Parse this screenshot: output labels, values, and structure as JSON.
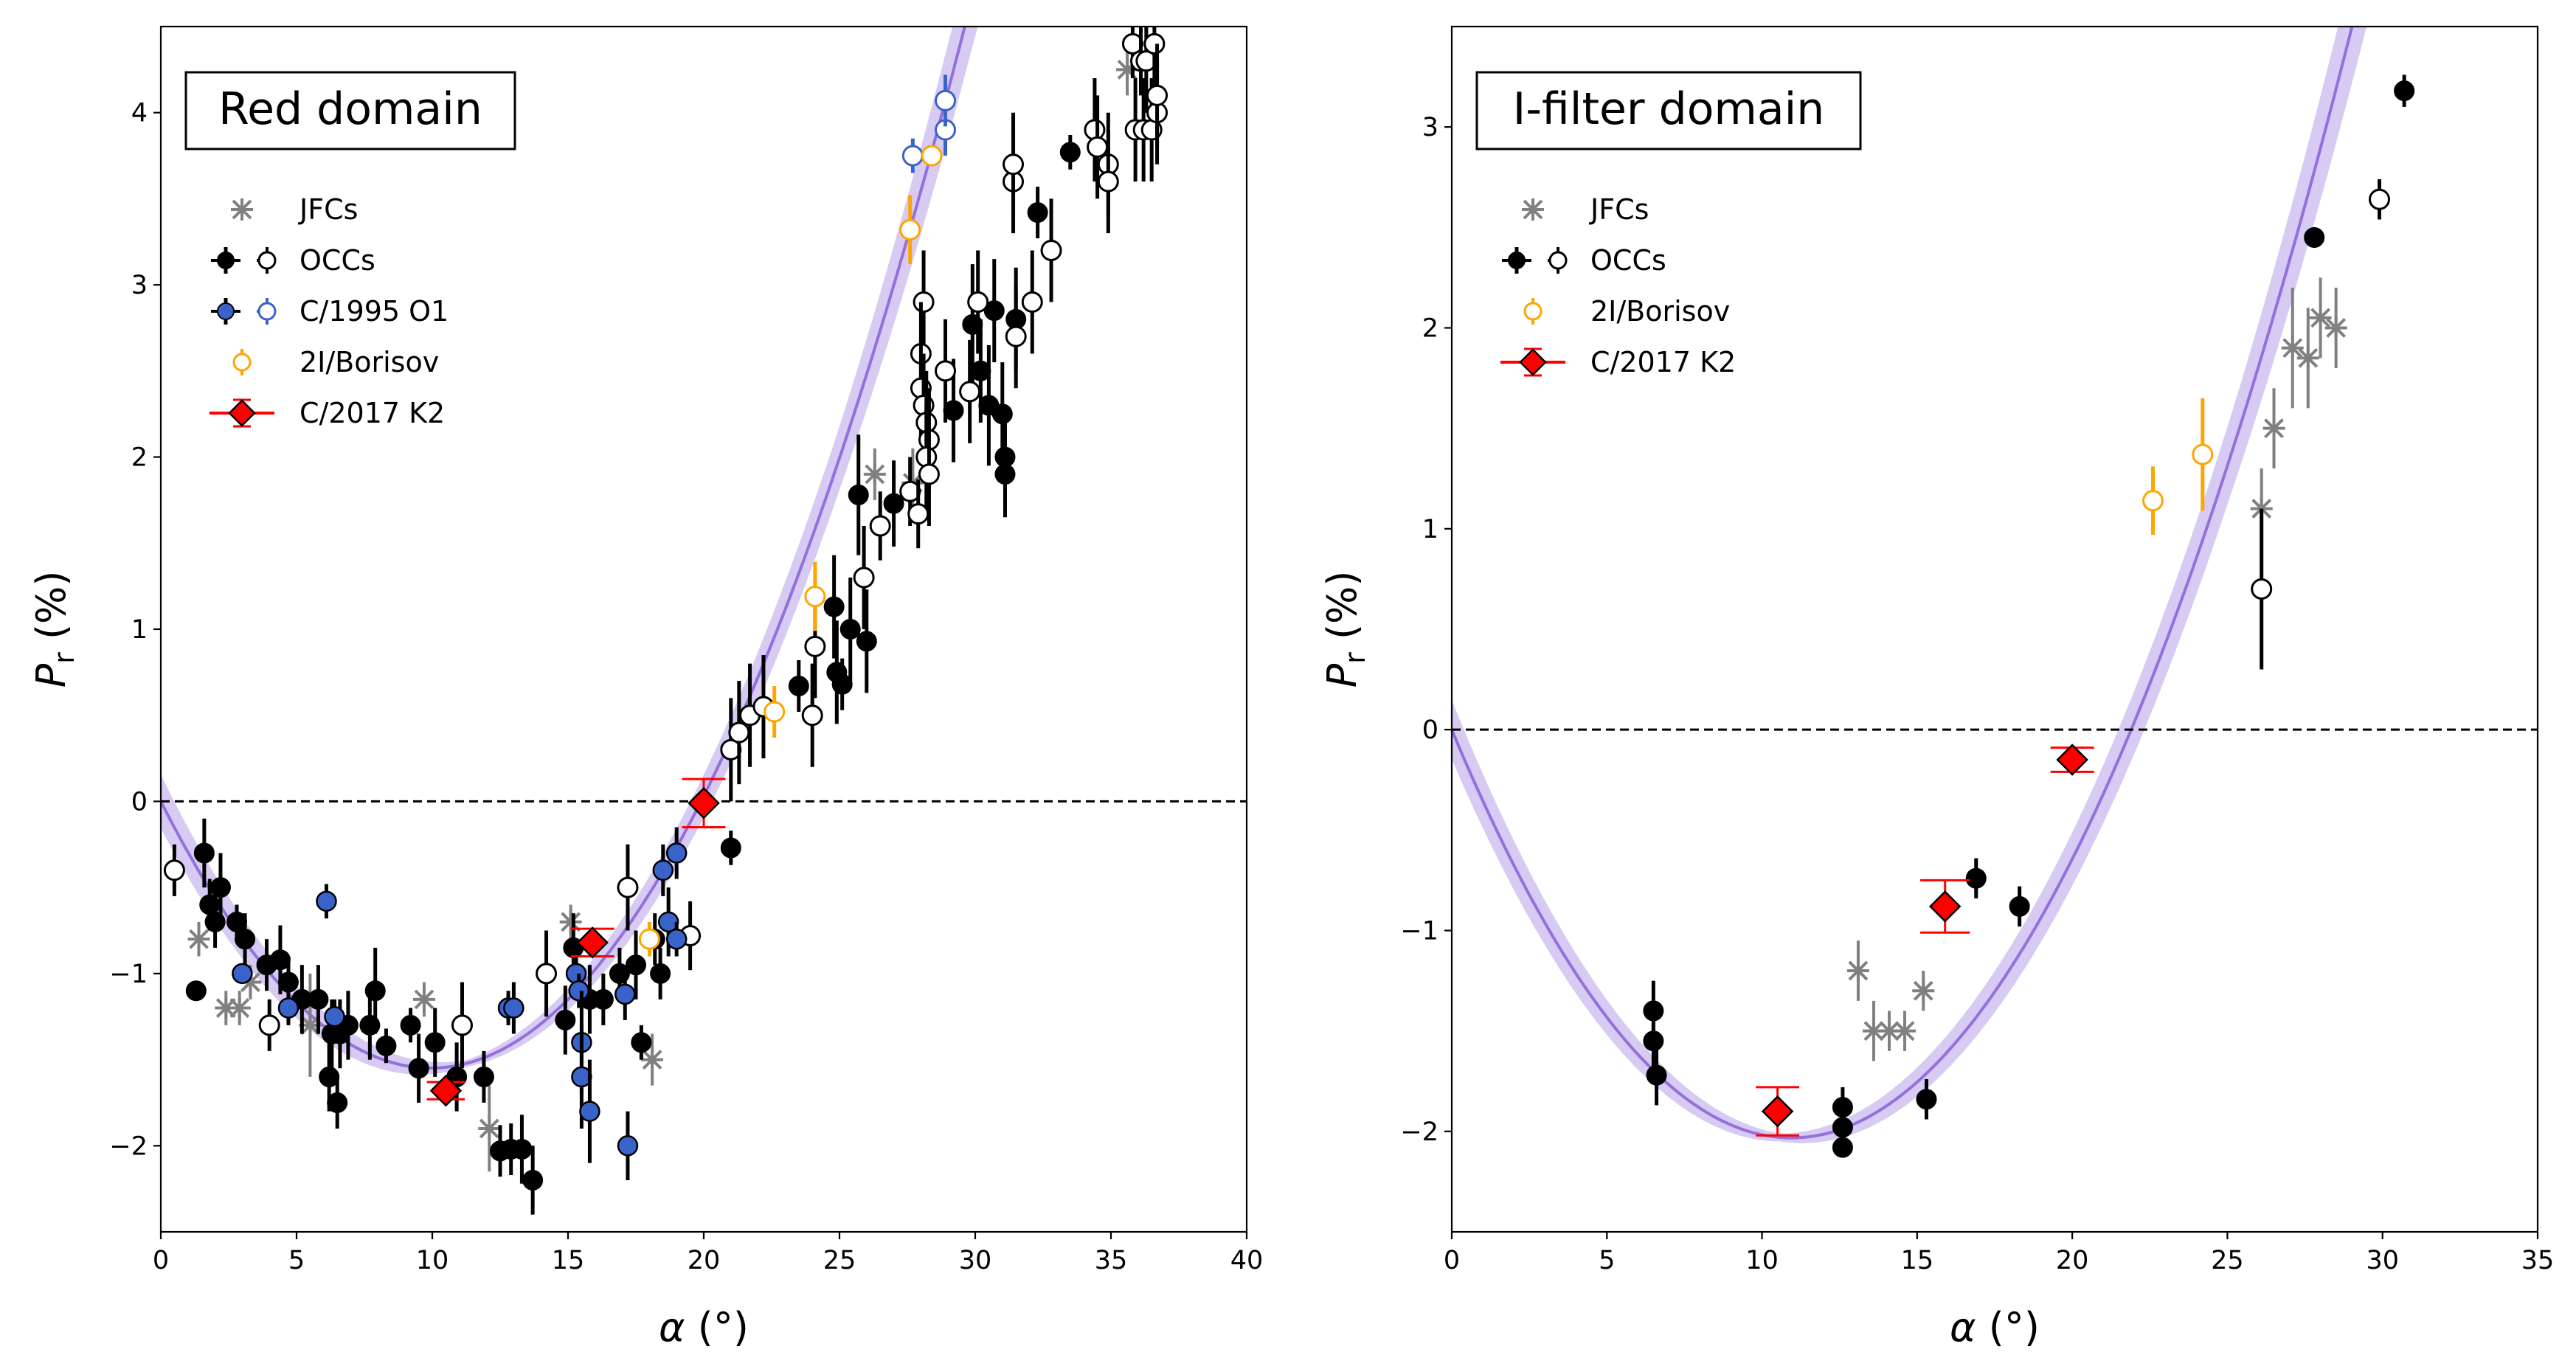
{
  "colors": {
    "jfc": "#808080",
    "occ": "#000000",
    "c1995": "#3a63c9",
    "borisov": "#ffa500",
    "k2": "#ff0000",
    "fit": "#9370db",
    "fit_band": "#c9b8ef"
  },
  "chart_data": [
    {
      "type": "scatter",
      "title": "Red domain",
      "xlabel": "α (°)",
      "ylabel": "P_r (%)",
      "xlim": [
        0,
        40
      ],
      "ylim": [
        -2.5,
        4.5
      ],
      "xticks": [
        0,
        5,
        10,
        15,
        20,
        25,
        30,
        35,
        40
      ],
      "yticks": [
        -2,
        -1,
        0,
        1,
        2,
        3,
        4
      ],
      "legend": [
        "JFCs",
        "OCCs",
        "C/1995 O1",
        "2I/Borisov",
        "C/2017 K2"
      ],
      "legend_position": "upper-left",
      "fit": {
        "Pmin": -1.52,
        "alpha_min": 11.3,
        "alpha_inv": 19.9,
        "color": "#9370db"
      },
      "series": [
        {
          "name": "JFCs",
          "marker": "x",
          "points": [
            [
              1.4,
              -0.8,
              0.1
            ],
            [
              2.4,
              -1.2,
              0.1
            ],
            [
              2.9,
              -1.2,
              0.1
            ],
            [
              3.3,
              -1.05,
              0.1
            ],
            [
              5.5,
              -1.3,
              0.3
            ],
            [
              9.7,
              -1.15,
              0.1
            ],
            [
              12.1,
              -1.9,
              0.25
            ],
            [
              15.1,
              -0.7,
              0.1
            ],
            [
              18.1,
              -1.5,
              0.15
            ],
            [
              26.3,
              1.9,
              0.15
            ],
            [
              27.7,
              1.85,
              0.2
            ],
            [
              35.6,
              4.25,
              0.15
            ]
          ]
        },
        {
          "name": "OCCs filled",
          "marker": "o-filled",
          "points": [
            [
              1.3,
              -1.1,
              0.05
            ],
            [
              1.6,
              -0.3,
              0.2
            ],
            [
              1.8,
              -0.6,
              0.15
            ],
            [
              2.2,
              -0.5,
              0.2
            ],
            [
              2.0,
              -0.7,
              0.15
            ],
            [
              2.8,
              -0.7,
              0.1
            ],
            [
              3.1,
              -0.8,
              0.15
            ],
            [
              3.9,
              -0.95,
              0.15
            ],
            [
              4.4,
              -0.92,
              0.2
            ],
            [
              4.7,
              -1.05,
              0.15
            ],
            [
              5.2,
              -1.15,
              0.2
            ],
            [
              5.8,
              -1.15,
              0.2
            ],
            [
              6.2,
              -1.6,
              0.2
            ],
            [
              6.3,
              -1.35,
              0.2
            ],
            [
              6.6,
              -1.35,
              0.2
            ],
            [
              6.5,
              -1.75,
              0.15
            ],
            [
              6.9,
              -1.3,
              0.2
            ],
            [
              7.7,
              -1.3,
              0.2
            ],
            [
              7.9,
              -1.1,
              0.25
            ],
            [
              8.3,
              -1.42,
              0.1
            ],
            [
              9.2,
              -1.3,
              0.1
            ],
            [
              9.5,
              -1.55,
              0.2
            ],
            [
              10.1,
              -1.4,
              0.2
            ],
            [
              10.9,
              -1.6,
              0.2
            ],
            [
              11.9,
              -1.6,
              0.15
            ],
            [
              12.5,
              -2.03,
              0.15
            ],
            [
              12.9,
              -2.02,
              0.15
            ],
            [
              13.3,
              -2.02,
              0.2
            ],
            [
              13.7,
              -2.2,
              0.2
            ],
            [
              14.9,
              -1.27,
              0.2
            ],
            [
              15.2,
              -0.85,
              0.2
            ],
            [
              15.8,
              -1.15,
              0.2
            ],
            [
              16.3,
              -1.15,
              0.15
            ],
            [
              16.9,
              -1.0,
              0.15
            ],
            [
              17.5,
              -0.95,
              0.2
            ],
            [
              17.7,
              -1.4,
              0.1
            ],
            [
              18.2,
              -0.8,
              0.15
            ],
            [
              18.4,
              -1.0,
              0.15
            ],
            [
              21.0,
              -0.27,
              0.1
            ],
            [
              23.5,
              0.67,
              0.15
            ],
            [
              24.8,
              1.13,
              0.3
            ],
            [
              24.9,
              0.75,
              0.3
            ],
            [
              25.1,
              0.68,
              0.15
            ],
            [
              25.4,
              1.0,
              0.3
            ],
            [
              25.7,
              1.78,
              0.35
            ],
            [
              26.0,
              0.93,
              0.3
            ],
            [
              27.0,
              1.73,
              0.25
            ],
            [
              29.2,
              2.27,
              0.3
            ],
            [
              29.9,
              2.77,
              0.35
            ],
            [
              30.2,
              2.5,
              0.3
            ],
            [
              30.5,
              2.3,
              0.35
            ],
            [
              30.7,
              2.85,
              0.3
            ],
            [
              31.0,
              2.25,
              0.3
            ],
            [
              31.1,
              2.0,
              0.3
            ],
            [
              31.1,
              1.9,
              0.25
            ],
            [
              31.5,
              2.8,
              0.3
            ],
            [
              32.3,
              3.42,
              0.15
            ],
            [
              33.5,
              3.77,
              0.1
            ]
          ]
        },
        {
          "name": "OCCs open",
          "marker": "o-open",
          "points": [
            [
              0.5,
              -0.4,
              0.15
            ],
            [
              4.0,
              -1.3,
              0.15
            ],
            [
              11.1,
              -1.3,
              0.25
            ],
            [
              14.2,
              -1.0,
              0.25
            ],
            [
              17.2,
              -0.5,
              0.25
            ],
            [
              19.5,
              -0.78,
              0.2
            ],
            [
              21.0,
              0.3,
              0.3
            ],
            [
              21.3,
              0.4,
              0.3
            ],
            [
              21.7,
              0.5,
              0.3
            ],
            [
              22.2,
              0.55,
              0.3
            ],
            [
              24.0,
              0.5,
              0.3
            ],
            [
              24.1,
              0.9,
              0.3
            ],
            [
              25.9,
              1.3,
              0.3
            ],
            [
              26.5,
              1.6,
              0.2
            ],
            [
              27.6,
              1.8,
              0.2
            ],
            [
              27.9,
              1.67,
              0.2
            ],
            [
              28.1,
              2.9,
              0.3
            ],
            [
              28.0,
              2.6,
              0.3
            ],
            [
              28.0,
              2.4,
              0.3
            ],
            [
              28.1,
              2.3,
              0.3
            ],
            [
              28.2,
              2.2,
              0.3
            ],
            [
              28.3,
              2.1,
              0.3
            ],
            [
              28.2,
              2.0,
              0.3
            ],
            [
              28.3,
              1.9,
              0.3
            ],
            [
              28.9,
              2.5,
              0.3
            ],
            [
              30.1,
              2.9,
              0.3
            ],
            [
              29.8,
              2.38,
              0.3
            ],
            [
              31.4,
              3.6,
              0.3
            ],
            [
              31.4,
              3.7,
              0.3
            ],
            [
              31.5,
              2.7,
              0.3
            ],
            [
              32.1,
              2.9,
              0.3
            ],
            [
              32.8,
              3.2,
              0.3
            ],
            [
              34.4,
              3.9,
              0.3
            ],
            [
              34.5,
              3.8,
              0.3
            ],
            [
              34.9,
              3.7,
              0.3
            ],
            [
              34.9,
              3.6,
              0.3
            ],
            [
              35.8,
              4.4,
              0.2
            ],
            [
              35.9,
              3.9,
              0.3
            ],
            [
              36.1,
              4.3,
              0.2
            ],
            [
              36.2,
              3.9,
              0.3
            ],
            [
              36.3,
              4.3,
              0.3
            ],
            [
              36.5,
              3.9,
              0.3
            ],
            [
              36.6,
              4.4,
              0.3
            ],
            [
              36.7,
              4.0,
              0.3
            ],
            [
              36.7,
              4.1,
              0.3
            ]
          ]
        },
        {
          "name": "C/1995 O1 filled",
          "marker": "o-blue",
          "points": [
            [
              3.0,
              -1.0,
              0.05
            ],
            [
              4.7,
              -1.2,
              0.1
            ],
            [
              6.1,
              -0.58,
              0.1
            ],
            [
              6.4,
              -1.25,
              0.1
            ],
            [
              12.8,
              -1.2,
              0.1
            ],
            [
              13.0,
              -1.2,
              0.15
            ],
            [
              15.3,
              -1.0,
              0.1
            ],
            [
              15.4,
              -1.1,
              0.1
            ],
            [
              15.5,
              -1.4,
              0.3
            ],
            [
              15.5,
              -1.6,
              0.3
            ],
            [
              15.8,
              -1.8,
              0.3
            ],
            [
              17.1,
              -1.12,
              0.15
            ],
            [
              17.2,
              -2.0,
              0.2
            ],
            [
              18.5,
              -0.4,
              0.15
            ],
            [
              18.7,
              -0.7,
              0.2
            ],
            [
              19.0,
              -0.3,
              0.15
            ],
            [
              19.0,
              -0.8,
              0.1
            ]
          ]
        },
        {
          "name": "C/1995 O1 open",
          "marker": "o-blue-open",
          "points": [
            [
              27.7,
              3.75,
              0.1
            ],
            [
              28.9,
              3.9,
              0.15
            ],
            [
              28.9,
              4.07,
              0.15
            ]
          ]
        },
        {
          "name": "2I/Borisov",
          "marker": "o-orange",
          "points": [
            [
              18.0,
              -0.8,
              0.1
            ],
            [
              22.6,
              0.52,
              0.15
            ],
            [
              24.1,
              1.19,
              0.2
            ],
            [
              27.6,
              3.32,
              0.2
            ],
            [
              28.4,
              3.75,
              0.05
            ]
          ]
        },
        {
          "name": "C/2017 K2",
          "marker": "diamond",
          "points": [
            [
              10.5,
              -1.68,
              0.05,
              0.7
            ],
            [
              15.9,
              -0.82,
              0.08,
              0.8
            ],
            [
              20.0,
              -0.01,
              0.14,
              0.8
            ]
          ]
        }
      ]
    },
    {
      "type": "scatter",
      "title": "I-filter domain",
      "xlabel": "α (°)",
      "ylabel": "P_r (%)",
      "xlim": [
        0,
        35
      ],
      "ylim": [
        -2.5,
        3.5
      ],
      "xticks": [
        0,
        5,
        10,
        15,
        20,
        25,
        30,
        35
      ],
      "yticks": [
        -2,
        -1,
        0,
        1,
        2,
        3
      ],
      "legend": [
        "JFCs",
        "OCCs",
        "2I/Borisov",
        "C/2017 K2"
      ],
      "legend_position": "upper-left",
      "fit": {
        "Pmin": -2.03,
        "alpha_min": 10.6,
        "alpha_inv": 21.9,
        "color": "#9370db"
      },
      "series": [
        {
          "name": "JFCs",
          "marker": "x",
          "points": [
            [
              13.1,
              -1.2,
              0.15
            ],
            [
              13.6,
              -1.5,
              0.15
            ],
            [
              14.1,
              -1.5,
              0.1
            ],
            [
              14.6,
              -1.5,
              0.1
            ],
            [
              15.2,
              -1.3,
              0.1
            ],
            [
              26.1,
              1.1,
              0.2
            ],
            [
              26.5,
              1.5,
              0.2
            ],
            [
              27.1,
              1.9,
              0.3
            ],
            [
              27.6,
              1.85,
              0.25
            ],
            [
              28.0,
              2.05,
              0.2
            ],
            [
              28.5,
              2.0,
              0.2
            ]
          ]
        },
        {
          "name": "OCCs filled",
          "marker": "o-filled",
          "points": [
            [
              6.5,
              -1.4,
              0.15
            ],
            [
              6.5,
              -1.55,
              0.15
            ],
            [
              6.6,
              -1.72,
              0.15
            ],
            [
              12.6,
              -1.88,
              0.1
            ],
            [
              12.6,
              -1.98,
              0.1
            ],
            [
              12.6,
              -2.08,
              0.05
            ],
            [
              15.3,
              -1.84,
              0.1
            ],
            [
              16.9,
              -0.74,
              0.1
            ],
            [
              18.3,
              -0.88,
              0.1
            ],
            [
              27.8,
              2.45,
              0.05
            ],
            [
              30.7,
              3.18,
              0.08
            ]
          ]
        },
        {
          "name": "OCCs open",
          "marker": "o-open",
          "points": [
            [
              26.1,
              0.7,
              0.4
            ],
            [
              29.9,
              2.64,
              0.1
            ]
          ]
        },
        {
          "name": "2I/Borisov",
          "marker": "o-orange",
          "points": [
            [
              22.6,
              1.14,
              0.17
            ],
            [
              24.2,
              1.37,
              0.28
            ]
          ]
        },
        {
          "name": "C/2017 K2",
          "marker": "diamond",
          "points": [
            [
              10.5,
              -1.9,
              0.12,
              0.7
            ],
            [
              15.9,
              -0.88,
              0.13,
              0.8
            ],
            [
              20.0,
              -0.15,
              0.06,
              0.7
            ]
          ]
        }
      ]
    }
  ]
}
